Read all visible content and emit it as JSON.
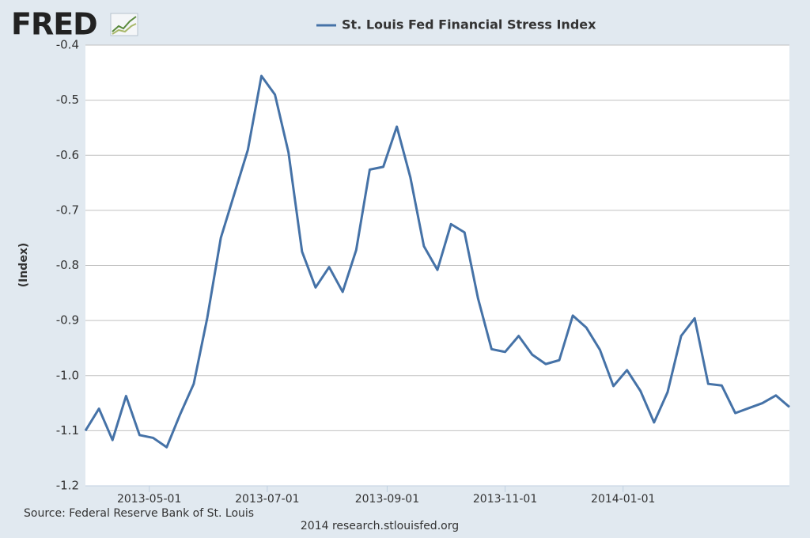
{
  "chart_data": {
    "type": "line",
    "logo": "FRED",
    "source": "Source: Federal Reserve Bank of St. Louis",
    "credit": "2014 research.stlouisfed.org",
    "y_label": "(Index)",
    "x": [
      "2013-03-29",
      "2013-04-05",
      "2013-04-12",
      "2013-04-19",
      "2013-04-26",
      "2013-05-03",
      "2013-05-10",
      "2013-05-17",
      "2013-05-24",
      "2013-05-31",
      "2013-06-07",
      "2013-06-14",
      "2013-06-21",
      "2013-06-28",
      "2013-07-05",
      "2013-07-12",
      "2013-07-19",
      "2013-07-26",
      "2013-08-02",
      "2013-08-09",
      "2013-08-16",
      "2013-08-23",
      "2013-08-30",
      "2013-09-06",
      "2013-09-13",
      "2013-09-20",
      "2013-09-27",
      "2013-10-04",
      "2013-10-11",
      "2013-10-18",
      "2013-10-25",
      "2013-11-01",
      "2013-11-08",
      "2013-11-15",
      "2013-11-22",
      "2013-11-29",
      "2013-12-06",
      "2013-12-13",
      "2013-12-20",
      "2013-12-27",
      "2014-01-03",
      "2014-01-10",
      "2014-01-17",
      "2014-01-24",
      "2014-01-31",
      "2014-02-07",
      "2014-02-14",
      "2014-02-21",
      "2014-02-28",
      "2014-03-07",
      "2014-03-14",
      "2014-03-21",
      "2014-03-28"
    ],
    "series": [
      {
        "name": "St. Louis Fed Financial Stress Index",
        "color": "#4572a7",
        "values": [
          -1.1,
          -1.06,
          -1.117,
          -1.037,
          -1.108,
          -1.113,
          -1.13,
          -1.07,
          -1.015,
          -0.895,
          -0.75,
          -0.67,
          -0.59,
          -0.456,
          -0.49,
          -0.595,
          -0.775,
          -0.84,
          -0.803,
          -0.848,
          -0.772,
          -0.626,
          -0.621,
          -0.548,
          -0.64,
          -0.765,
          -0.808,
          -0.725,
          -0.74,
          -0.86,
          -0.952,
          -0.957,
          -0.928,
          -0.962,
          -0.979,
          -0.972,
          -0.891,
          -0.913,
          -0.953,
          -1.019,
          -0.99,
          -1.028,
          -1.085,
          -1.03,
          -0.928,
          -0.896,
          -1.015,
          -1.018,
          -1.068,
          -1.059,
          -1.05,
          -1.036,
          -1.057
        ]
      }
    ],
    "xlim": [
      "2013-03-29",
      "2014-03-28"
    ],
    "xticks": [
      "2013-05-01",
      "2013-07-01",
      "2013-09-01",
      "2013-11-01",
      "2014-01-01"
    ],
    "ylim": [
      -1.2,
      -0.4
    ],
    "yticks": [
      -0.4,
      -0.5,
      -0.6,
      -0.7,
      -0.8,
      -0.9,
      {
        "value": -1,
        "label": "-1.0"
      },
      -1.1,
      -1.2
    ],
    "grid": true
  }
}
